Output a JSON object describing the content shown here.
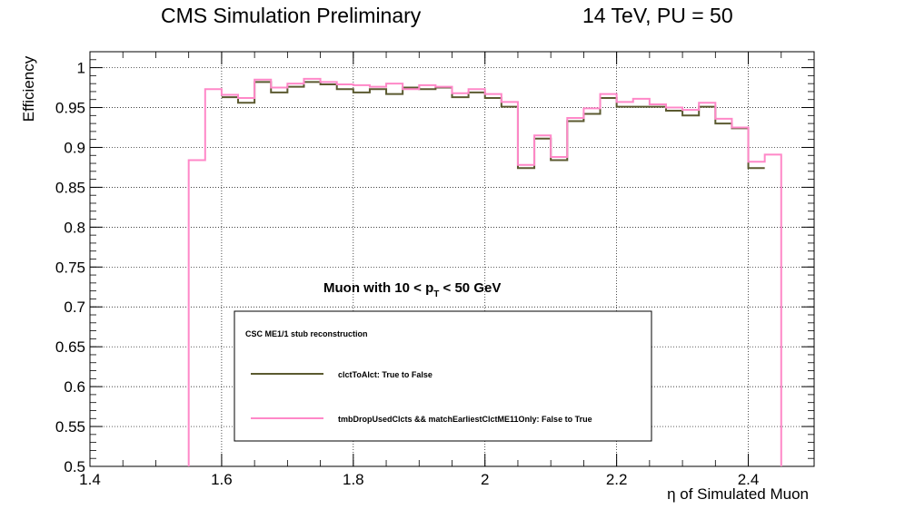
{
  "header": {
    "title_left": "CMS Simulation Preliminary",
    "title_right": "14 TeV, PU = 50"
  },
  "chart_data": {
    "type": "line",
    "xlabel": "η of Simulated Muon",
    "ylabel": "Efficiency",
    "xlim": [
      1.4,
      2.5
    ],
    "ylim": [
      0.5,
      1.02
    ],
    "grid": true,
    "x_ticks": [
      "1.4",
      "1.6",
      "1.8",
      "2",
      "2.2",
      "2.4"
    ],
    "y_ticks": [
      "0.5",
      "0.55",
      "0.6",
      "0.65",
      "0.7",
      "0.75",
      "0.8",
      "0.85",
      "0.9",
      "0.95",
      "1"
    ],
    "annotation": {
      "prefix": "Muon with  10 < p",
      "subscript": "T",
      "suffix": " < 50 GeV"
    },
    "legend": {
      "header": "CSC ME1/1 stub reconstruction",
      "placement": "bottom-center"
    },
    "bin_edges": [
      1.55,
      1.575,
      1.6,
      1.625,
      1.65,
      1.675,
      1.7,
      1.725,
      1.75,
      1.775,
      1.8,
      1.825,
      1.85,
      1.875,
      1.9,
      1.925,
      1.95,
      1.975,
      2.0,
      2.025,
      2.05,
      2.075,
      2.1,
      2.125,
      2.15,
      2.175,
      2.2,
      2.225,
      2.25,
      2.275,
      2.3,
      2.325,
      2.35,
      2.375,
      2.4,
      2.425,
      2.45
    ],
    "series": [
      {
        "name": "clctToAlct: True to False",
        "color": "#5b5a30",
        "values": [
          null,
          null,
          0.963,
          0.956,
          0.982,
          0.969,
          0.976,
          0.982,
          0.979,
          0.973,
          0.969,
          0.973,
          0.967,
          0.975,
          0.973,
          0.975,
          0.963,
          0.969,
          0.962,
          0.951,
          0.874,
          0.911,
          0.884,
          0.933,
          0.942,
          0.962,
          0.951,
          0.951,
          0.951,
          0.946,
          0.94,
          0.951,
          0.93,
          0.924,
          0.874,
          null
        ]
      },
      {
        "name": "tmbDropUsedClcts && matchEarliestClctME11Only: False to True",
        "color": "#ff88c8",
        "values": [
          0.884,
          0.973,
          0.966,
          0.962,
          0.985,
          0.975,
          0.98,
          0.986,
          0.982,
          0.979,
          0.978,
          0.976,
          0.98,
          0.973,
          0.978,
          0.976,
          0.968,
          0.973,
          0.967,
          0.957,
          0.878,
          0.915,
          0.888,
          0.937,
          0.949,
          0.967,
          0.957,
          0.961,
          0.954,
          0.95,
          0.947,
          0.956,
          0.936,
          0.925,
          0.882,
          0.891
        ]
      }
    ]
  }
}
